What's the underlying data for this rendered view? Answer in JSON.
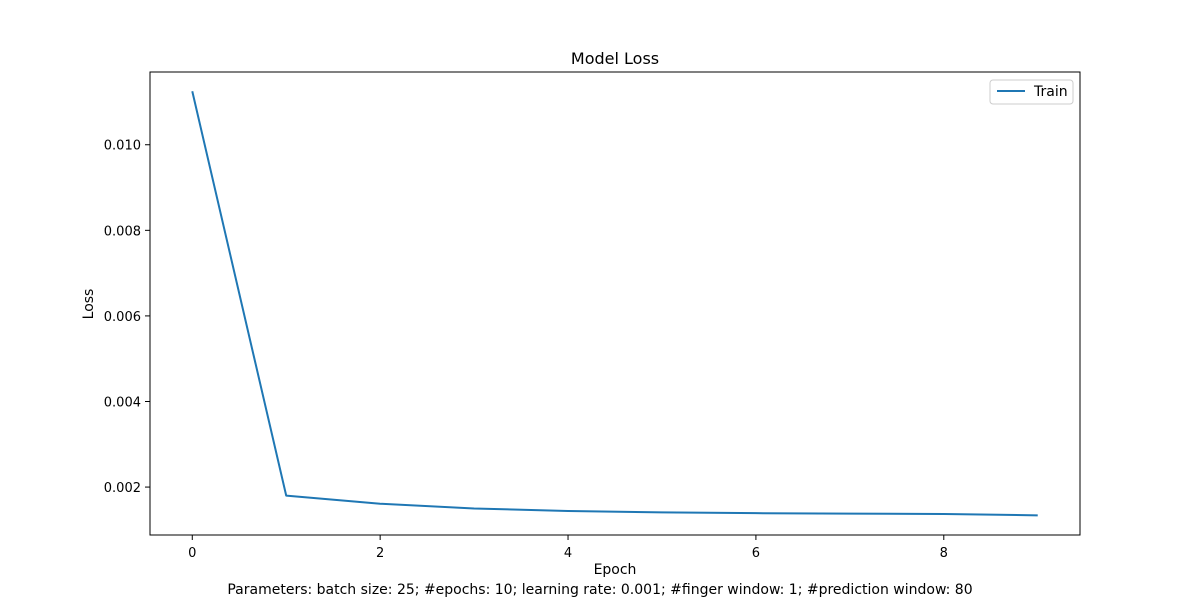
{
  "figure": {
    "caption": "Parameters: batch size: 25; #epochs: 10; learning rate: 0.001; #finger window: 1; #prediction window: 80"
  },
  "chart_data": {
    "type": "line",
    "title": "Model Loss",
    "xlabel": "Epoch",
    "ylabel": "Loss",
    "x": [
      0,
      1,
      2,
      3,
      4,
      5,
      6,
      7,
      8,
      9
    ],
    "series": [
      {
        "name": "Train",
        "color": "#1f77b4",
        "values": [
          0.01125,
          0.0018,
          0.00161,
          0.0015,
          0.00144,
          0.00141,
          0.00139,
          0.00138,
          0.00137,
          0.00134
        ]
      }
    ],
    "xlim": [
      -0.45,
      9.45
    ],
    "ylim": [
      0.00088,
      0.0117
    ],
    "xticks": [
      0,
      2,
      4,
      6,
      8
    ],
    "xtick_labels": [
      "0",
      "2",
      "4",
      "6",
      "8"
    ],
    "yticks": [
      0.002,
      0.004,
      0.006,
      0.008,
      0.01
    ],
    "ytick_labels": [
      "0.002",
      "0.004",
      "0.006",
      "0.008",
      "0.010"
    ],
    "grid": false,
    "legend_position": "top-right"
  }
}
